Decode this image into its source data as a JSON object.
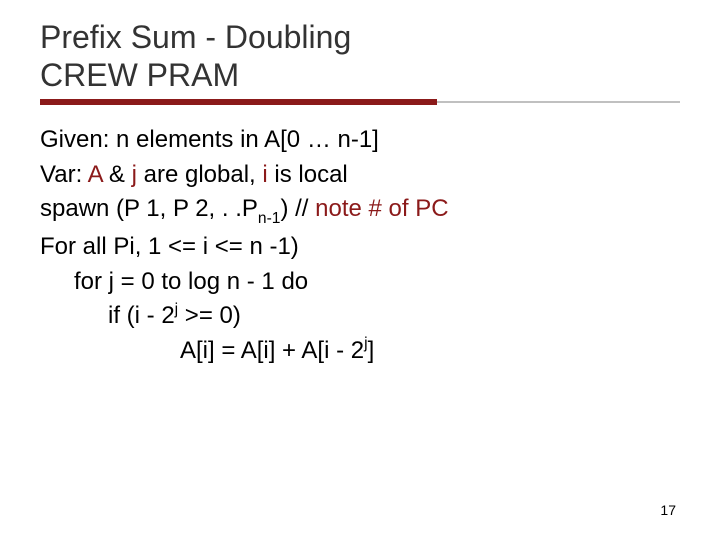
{
  "title_line1": "Prefix Sum - Doubling",
  "title_line2": "CREW PRAM",
  "colors": {
    "rule_thick": "#8b1a1a",
    "rule_thin": "#c0c0c0",
    "text": "#000000",
    "accent": "#8b1a1a",
    "background": "#ffffff"
  },
  "fontsize": {
    "title": 32,
    "body": 24,
    "pagenum": 14
  },
  "lines": {
    "l1_a": "Given: n elements in A[0 … n-1]",
    "l2_a": "Var:  ",
    "l2_b": "A",
    "l2_c": " & ",
    "l2_d": "j",
    "l2_e": " are global, ",
    "l2_f": "i",
    "l2_g": " is local",
    "l3_a": "spawn (P 1, P 2, . .P",
    "l3_sub": "n-1",
    "l3_b": ") // ",
    "l3_c": "note # of PC",
    "l4_a": "For all Pi, 1 <= i <= n -1)",
    "l5_a": "for j = 0 to log n - 1 do",
    "l6_a": "if (i - 2",
    "l6_sup": "j",
    "l6_b": " >= 0)",
    "l7_a": "A[i] = A[i] + A[i - 2",
    "l7_sup": "j",
    "l7_b": "]"
  },
  "page_number": "17"
}
